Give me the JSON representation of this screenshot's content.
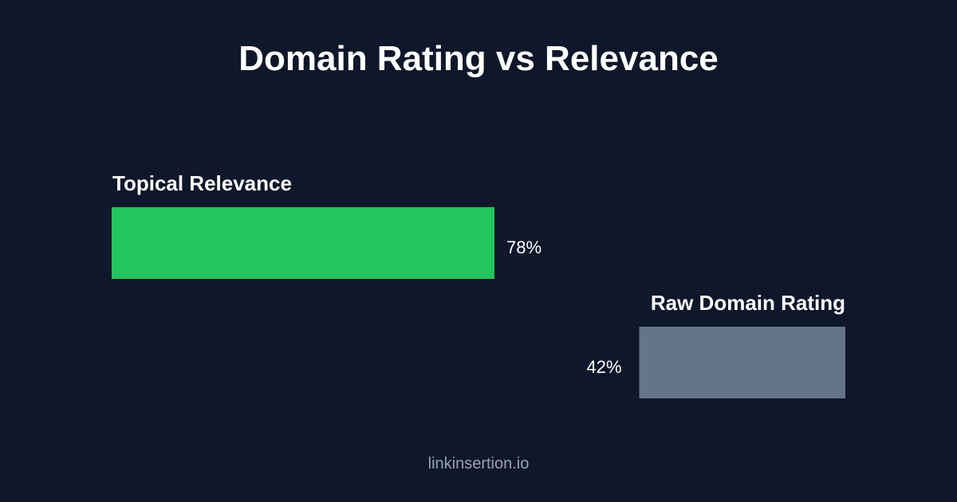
{
  "title": "Domain Rating vs Relevance",
  "footer": "linkinsertion.io",
  "colors": {
    "background": "#0f172a",
    "relevance": "#22c55e",
    "domain_rating": "#64748b",
    "footer_text": "#94a3b8"
  },
  "chart_data": {
    "type": "bar",
    "categories": [
      "Topical Relevance",
      "Raw Domain Rating"
    ],
    "values": [
      78,
      42
    ],
    "value_labels": [
      "78%",
      "42%"
    ],
    "unit": "%",
    "ylim": [
      0,
      100
    ],
    "grid": false,
    "title": "Domain Rating vs Relevance"
  }
}
